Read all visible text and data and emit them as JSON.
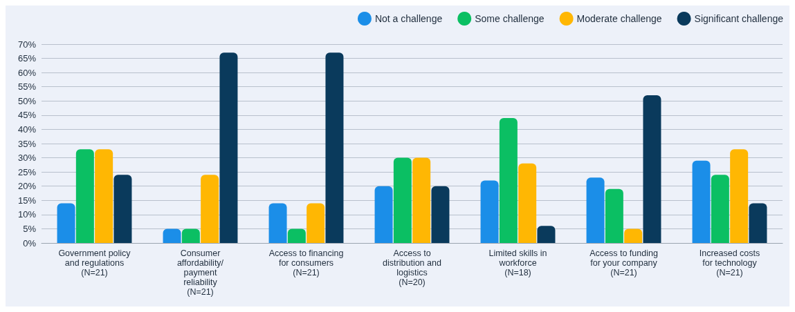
{
  "chart_data": {
    "type": "bar",
    "categories": [
      "Government policy\nand regulations\n(N=21)",
      "Consumer\naffordability/\npayment\nreliability\n(N=21)",
      "Access to financing\nfor consumers\n(N=21)",
      "Access to\ndistribution and\nlogistics\n(N=20)",
      "Limited skills in\nworkforce\n(N=18)",
      "Access to funding\nfor your company\n(N=21)",
      "Increased costs\nfor technology\n(N=21)"
    ],
    "series": [
      {
        "name": "Not a challenge",
        "color": "#1b8ee8",
        "values": [
          14,
          5,
          14,
          20,
          22,
          23,
          29
        ]
      },
      {
        "name": "Some challenge",
        "color": "#0bbf63",
        "values": [
          33,
          5,
          5,
          30,
          44,
          19,
          24
        ]
      },
      {
        "name": "Moderate challenge",
        "color": "#ffb703",
        "values": [
          33,
          24,
          14,
          30,
          28,
          5,
          33
        ]
      },
      {
        "name": "Significant challenge",
        "color": "#0a3a5c",
        "values": [
          24,
          67,
          67,
          20,
          6,
          52,
          14
        ]
      }
    ],
    "ylim": [
      0,
      70
    ],
    "yticks": [
      {
        "value": 0,
        "label": "0%"
      },
      {
        "value": 5,
        "label": "5%"
      },
      {
        "value": 10,
        "label": "10%"
      },
      {
        "value": 15,
        "label": "15%"
      },
      {
        "value": 20,
        "label": "20%"
      },
      {
        "value": 25,
        "label": "25%"
      },
      {
        "value": 30,
        "label": "30%"
      },
      {
        "value": 35,
        "label": "35%"
      },
      {
        "value": 40,
        "label": "40%"
      },
      {
        "value": 45,
        "label": "45%"
      },
      {
        "value": 50,
        "label": "50%"
      },
      {
        "value": 55,
        "label": "55%"
      },
      {
        "value": 60,
        "label": "60%"
      },
      {
        "value": 65,
        "label": "65%"
      },
      {
        "value": 70,
        "label": "70%"
      }
    ],
    "grid": true,
    "legend": "top right"
  }
}
